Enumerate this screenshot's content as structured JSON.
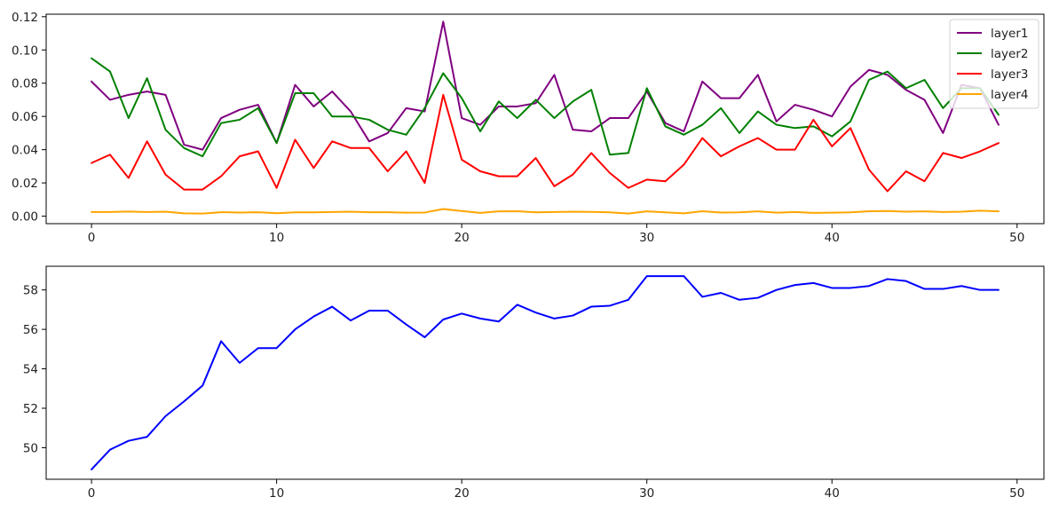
{
  "chart_data": [
    {
      "type": "line",
      "title": "",
      "xlabel": "",
      "ylabel": "",
      "xlim": [
        -2.45,
        51.45
      ],
      "ylim": [
        -0.0045,
        0.1215
      ],
      "xticks": [
        0,
        10,
        20,
        30,
        40,
        50
      ],
      "xtick_labels": [
        "0",
        "10",
        "20",
        "30",
        "40",
        "50"
      ],
      "yticks": [
        0.0,
        0.02,
        0.04,
        0.06,
        0.08,
        0.1,
        0.12
      ],
      "ytick_labels": [
        "0.00",
        "0.02",
        "0.04",
        "0.06",
        "0.08",
        "0.10",
        "0.12"
      ],
      "legend": "top-right",
      "grid": false,
      "x": [
        0,
        1,
        2,
        3,
        4,
        5,
        6,
        7,
        8,
        9,
        10,
        11,
        12,
        13,
        14,
        15,
        16,
        17,
        18,
        19,
        20,
        21,
        22,
        23,
        24,
        25,
        26,
        27,
        28,
        29,
        30,
        31,
        32,
        33,
        34,
        35,
        36,
        37,
        38,
        39,
        40,
        41,
        42,
        43,
        44,
        45,
        46,
        47,
        48,
        49
      ],
      "series": [
        {
          "name": "layer1",
          "color": "#800080",
          "values": [
            0.081,
            0.07,
            0.073,
            0.075,
            0.073,
            0.043,
            0.04,
            0.059,
            0.064,
            0.067,
            0.044,
            0.079,
            0.066,
            0.075,
            0.063,
            0.045,
            0.05,
            0.065,
            0.063,
            0.117,
            0.059,
            0.055,
            0.066,
            0.066,
            0.068,
            0.085,
            0.052,
            0.051,
            0.059,
            0.059,
            0.075,
            0.056,
            0.051,
            0.081,
            0.071,
            0.071,
            0.085,
            0.057,
            0.067,
            0.064,
            0.06,
            0.078,
            0.088,
            0.085,
            0.076,
            0.07,
            0.05,
            0.079,
            0.077,
            0.055
          ]
        },
        {
          "name": "layer2",
          "color": "#008000",
          "values": [
            0.095,
            0.087,
            0.059,
            0.083,
            0.052,
            0.041,
            0.036,
            0.056,
            0.058,
            0.065,
            0.044,
            0.074,
            0.074,
            0.06,
            0.06,
            0.058,
            0.052,
            0.049,
            0.065,
            0.086,
            0.071,
            0.051,
            0.069,
            0.059,
            0.07,
            0.059,
            0.069,
            0.076,
            0.037,
            0.038,
            0.077,
            0.054,
            0.049,
            0.055,
            0.065,
            0.05,
            0.063,
            0.055,
            0.053,
            0.054,
            0.048,
            0.057,
            0.082,
            0.087,
            0.077,
            0.082,
            0.065,
            0.077,
            0.077,
            0.061
          ]
        },
        {
          "name": "layer3",
          "color": "#ff0000",
          "values": [
            0.032,
            0.037,
            0.023,
            0.045,
            0.025,
            0.016,
            0.016,
            0.024,
            0.036,
            0.039,
            0.017,
            0.046,
            0.029,
            0.045,
            0.041,
            0.041,
            0.027,
            0.039,
            0.02,
            0.073,
            0.034,
            0.027,
            0.024,
            0.024,
            0.035,
            0.018,
            0.025,
            0.038,
            0.026,
            0.017,
            0.022,
            0.021,
            0.031,
            0.047,
            0.036,
            0.042,
            0.047,
            0.04,
            0.04,
            0.058,
            0.042,
            0.053,
            0.028,
            0.015,
            0.027,
            0.021,
            0.038,
            0.035,
            0.039,
            0.044
          ]
        },
        {
          "name": "layer4",
          "color": "#ffa500",
          "values": [
            0.0025,
            0.0025,
            0.0028,
            0.0025,
            0.0027,
            0.0017,
            0.0016,
            0.0024,
            0.0022,
            0.0024,
            0.0018,
            0.0023,
            0.0023,
            0.0025,
            0.0027,
            0.0024,
            0.0024,
            0.0021,
            0.0022,
            0.0043,
            0.0031,
            0.002,
            0.0029,
            0.003,
            0.0023,
            0.0025,
            0.0027,
            0.0026,
            0.0023,
            0.0016,
            0.0029,
            0.0023,
            0.0017,
            0.003,
            0.0022,
            0.0023,
            0.0029,
            0.0021,
            0.0025,
            0.002,
            0.0021,
            0.0023,
            0.003,
            0.0031,
            0.0027,
            0.0029,
            0.0025,
            0.0027,
            0.0033,
            0.0029
          ]
        }
      ]
    },
    {
      "type": "line",
      "title": "",
      "xlabel": "",
      "ylabel": "",
      "xlim": [
        -2.45,
        51.45
      ],
      "ylim": [
        48.4,
        59.2
      ],
      "xticks": [
        0,
        10,
        20,
        30,
        40,
        50
      ],
      "xtick_labels": [
        "0",
        "10",
        "20",
        "30",
        "40",
        "50"
      ],
      "yticks": [
        50,
        52,
        54,
        56,
        58
      ],
      "ytick_labels": [
        "50",
        "52",
        "54",
        "56",
        "58"
      ],
      "legend": "none",
      "grid": false,
      "x": [
        0,
        1,
        2,
        3,
        4,
        5,
        6,
        7,
        8,
        9,
        10,
        11,
        12,
        13,
        14,
        15,
        16,
        17,
        18,
        19,
        20,
        21,
        22,
        23,
        24,
        25,
        26,
        27,
        28,
        29,
        30,
        31,
        32,
        33,
        34,
        35,
        36,
        37,
        38,
        39,
        40,
        41,
        42,
        43,
        44,
        45,
        46,
        47,
        48,
        49
      ],
      "series": [
        {
          "name": "",
          "color": "#0000ff",
          "values": [
            48.9,
            49.9,
            50.35,
            50.55,
            51.6,
            52.35,
            53.15,
            55.4,
            54.3,
            55.05,
            55.05,
            56.0,
            56.65,
            57.15,
            56.45,
            56.95,
            56.95,
            56.25,
            55.6,
            56.5,
            56.8,
            56.55,
            56.4,
            57.25,
            56.85,
            56.55,
            56.7,
            57.15,
            57.2,
            57.5,
            58.7,
            58.7,
            58.7,
            57.65,
            57.85,
            57.5,
            57.6,
            58.0,
            58.25,
            58.35,
            58.1,
            58.1,
            58.2,
            58.55,
            58.45,
            58.05,
            58.05,
            58.2,
            58.0,
            58.0
          ]
        }
      ]
    }
  ]
}
